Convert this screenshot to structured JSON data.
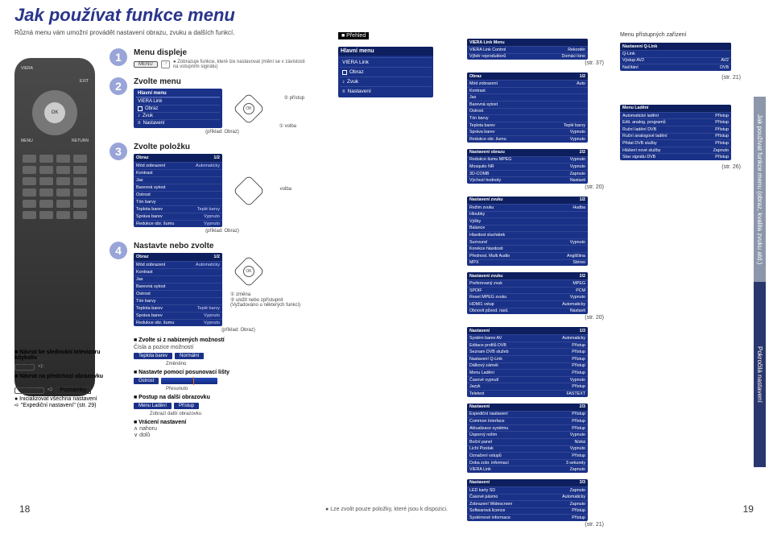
{
  "pageLeft": "18",
  "pageRight": "19",
  "title": "Jak používat funkce menu",
  "subtitle": "Různá menu vám umožní provádět nastavení obrazu, zvuku a dalších funkcí.",
  "footerNote": "● Lze zvolit pouze položky, které jsou k dispozici.",
  "sideTab": {
    "gray": "Jak používat funkce menu (obraz, kvalita zvuku atd.)",
    "navy": "Pokročilá nastavení"
  },
  "remote": {
    "ok": "OK",
    "menu": "MENU",
    "exit": "EXIT",
    "return": "RETURN"
  },
  "steps": {
    "s1": {
      "num": "1",
      "title": "Menu displeje",
      "chip": "MENU",
      "note": "● Zobrazuje funkce, které lze nastavovat (mění se v závislosti na vstupním signálu)"
    },
    "s2": {
      "num": "2",
      "title": "Zvolte menu",
      "menuHeader": "Hlavní menu",
      "rows": [
        "VIERA Link",
        "Obraz",
        "Zvuk",
        "Nastavení"
      ],
      "nav": {
        "right": "② přístup",
        "down": "① volba"
      },
      "belowCaption": "(příklad: Obraz)"
    },
    "s3": {
      "num": "3",
      "title": "Zvolte položku",
      "table": {
        "hdrLeft": "Obraz",
        "hdrRight": "1/2",
        "rows": [
          [
            "Mód zobrazení",
            "Automaticky"
          ],
          [
            "Kontrast",
            ""
          ],
          [
            "Jas",
            ""
          ],
          [
            "Barevná sytost",
            ""
          ],
          [
            "Ostrost",
            ""
          ],
          [
            "Tón barvy",
            ""
          ],
          [
            "Teplota barev",
            "Teplé barvy"
          ],
          [
            "Správa barev",
            "Vypnuto"
          ],
          [
            "Redukce obr. šumu",
            "Vypnuto"
          ]
        ]
      },
      "navRight": "volba",
      "belowCaption": "(příklad: Obraz)"
    },
    "s4": {
      "num": "4",
      "title": "Nastavte nebo zvolte",
      "table": {
        "hdrLeft": "Obraz",
        "hdrRight": "1/2",
        "rows": [
          [
            "Mód zobrazení",
            "Automaticky"
          ],
          [
            "Kontrast",
            ""
          ],
          [
            "Jas",
            ""
          ],
          [
            "Barevná sytost",
            ""
          ],
          [
            "Ostrost",
            ""
          ],
          [
            "Tón barvy",
            ""
          ],
          [
            "Teplota barev",
            "Teplé barvy"
          ],
          [
            "Správa barev",
            "Vypnuto"
          ],
          [
            "Redukce obr. šumu",
            "Vypnuto"
          ]
        ]
      },
      "navRight1": "① změna",
      "navRight2": "② uložit nebo zpřístupnit (Vyžadováno u některých funkcí)",
      "belowCaption": "(příklad: Obraz)",
      "section1": {
        "head": "■ Zvolte si z nabízených možností",
        "sub": "Čísla a pozice možností"
      },
      "slider1": {
        "label": "Teplota barev",
        "value": "Normální",
        "caption": "Změněno"
      },
      "section2": {
        "head": "■ Nastavte pomocí posunovací lišty",
        "slider": "Ostrost",
        "caption": "Přesunuto"
      },
      "section3": {
        "head": "■ Postup na další obrazovku",
        "btn1": "Menu Ladění",
        "btn2": "Přístup",
        "caption": "Zobrazí další obrazovku"
      },
      "section4": {
        "head": "■ Vrácení nastavení",
        "up": "nahoru",
        "down": "dolů"
      }
    }
  },
  "leftActions": {
    "a1": {
      "lbl": "■ Návrat ke sledování televizoru kdykoliv",
      "chip": "EXIT"
    },
    "a2": {
      "lbl": "■ Návrat na předchozí obrazovku",
      "chip": "RETURN"
    },
    "note": "Poznámky",
    "noteText": "● Inicializovat všechna nastavení",
    "noteLink": "➪ \"Expediční nastavení\" (str. 29)"
  },
  "overview": {
    "head": "■ Přehled",
    "mainHeader": "Hlavní menu",
    "rows": [
      "VIERA Link",
      "Obraz",
      "Zvuk",
      "Nastavení"
    ]
  },
  "rightStacks": [
    {
      "hdr": "VIERA Link Menu",
      "page": "",
      "rows": [
        [
          "VIERA Link Control",
          "Rekordér"
        ],
        [
          "Výběr reproduktorů",
          "Domácí kino"
        ]
      ],
      "str": "(str. 37)"
    },
    {
      "hdr": "Obraz",
      "page": "1/2",
      "rows": [
        [
          "Mód zobrazení",
          "Auto"
        ],
        [
          "Kontrast",
          ""
        ],
        [
          "Jas",
          ""
        ],
        [
          "Barevná sytost",
          ""
        ],
        [
          "Ostrost",
          ""
        ],
        [
          "Tón barvy",
          ""
        ],
        [
          "Teplota barev",
          "Teplé barvy"
        ],
        [
          "Správa barev",
          "Vypnuto"
        ],
        [
          "Redukce obr. šumu",
          "Vypnuto"
        ]
      ],
      "str": ""
    },
    {
      "hdr": "Nastavení obrazu",
      "page": "2/2",
      "rows": [
        [
          "Redukce šumu MPEG",
          "Vypnuto"
        ],
        [
          "Mosquito NR",
          "Vypnuto"
        ],
        [
          "3D-COMB",
          "Zapnuto"
        ],
        [
          "Výchozí hodnoty",
          "Nastavit"
        ]
      ],
      "str": "(str. 20)"
    },
    {
      "hdr": "Nastavení zvuku",
      "page": "1/2",
      "rows": [
        [
          "Režim zvuku",
          "Hudba"
        ],
        [
          "Hloubky",
          ""
        ],
        [
          "Výšky",
          ""
        ],
        [
          "Balance",
          ""
        ],
        [
          "Hlasitost sluchátek",
          ""
        ],
        [
          "Surround",
          "Vypnuto"
        ],
        [
          "Korekce hlasitosti",
          ""
        ],
        [
          "Přednost. Multi Audio",
          "Angličtina"
        ],
        [
          "MPX",
          "Stéreo"
        ]
      ],
      "str": ""
    },
    {
      "hdr": "Nastavení zvuku",
      "page": "2/2",
      "rows": [
        [
          "Preferovaný zvuk",
          "MPEG"
        ],
        [
          "SPDIF",
          "PCM"
        ],
        [
          "Reset MPEG zvuku",
          "Vypnuto"
        ],
        [
          "HDMI1 vstup",
          "Automaticky"
        ],
        [
          "Obnovit původ. nast.",
          "Nastavit"
        ]
      ],
      "str": "(str. 20)"
    },
    {
      "hdr": "Nastavení",
      "page": "1/3",
      "rows": [
        [
          "Systém barev AV",
          "Automaticky"
        ],
        [
          "Editace profilů DVB",
          "Přístup"
        ],
        [
          "Seznam DVB služeb",
          "Přístup"
        ],
        [
          "Nastavení Q-Link",
          "Přístup"
        ],
        [
          "Dálkový zámek",
          "Přístup"
        ],
        [
          "Menu Ladění",
          "Přístup"
        ],
        [
          "Časové vypnutí",
          "Vypnuto"
        ],
        [
          "Jazyk",
          "Přístup"
        ],
        [
          "Teletext",
          "FASTEXT"
        ]
      ],
      "str": ""
    },
    {
      "hdr": "Nastavení",
      "page": "2/3",
      "rows": [
        [
          "Expediční nastavení",
          "Přístup"
        ],
        [
          "Common Interface",
          "Přístup"
        ],
        [
          "Aktualizace systému",
          "Přístup"
        ],
        [
          "Úsporný režim",
          "Vypnuto"
        ],
        [
          "Boční panel",
          "Nízká"
        ],
        [
          "Lichí Pixstak",
          "Vypnuto"
        ],
        [
          "Označení vstupů",
          "Přístup"
        ],
        [
          "Doba zobr. informací",
          "3 sekundy"
        ],
        [
          "VIERA Link",
          "Zapnuto"
        ]
      ],
      "str": ""
    },
    {
      "hdr": "Nastavení",
      "page": "3/3",
      "rows": [
        [
          "LED karty SD",
          "Zapnuto"
        ],
        [
          "Časové pásmo",
          "Automaticky"
        ],
        [
          "Zobrazení Widescreen",
          "Zapnuto"
        ],
        [
          "Softwarová licence",
          "Přístup"
        ],
        [
          "Systémové informace",
          "Přístup"
        ]
      ],
      "str": "(str. 21)"
    }
  ],
  "farRight": {
    "label": "Menu přístupných zařízení",
    "t1": {
      "hdr": "Nastavení Q-Link",
      "rows": [
        [
          "Q-Link",
          ""
        ],
        [
          "Výstup AV2",
          "AV2"
        ],
        [
          "Načítání",
          "DVB"
        ]
      ],
      "str": "(str. 21)"
    },
    "t2": {
      "hdr": "Menu Ladění",
      "rows": [
        [
          "Automatické ladění",
          "Přístup"
        ],
        [
          "Edit. analog. programů",
          "Přístup"
        ],
        [
          "Ruční ladění DVB",
          "Přístup"
        ],
        [
          "Ruční analogové ladění",
          "Přístup"
        ],
        [
          "Přidat DVB služby",
          "Přístup"
        ],
        [
          "Hlášení nové služby",
          "Zapnuto"
        ],
        [
          "Stav signálu DVB",
          "Přístup"
        ]
      ],
      "str": "(str. 26)"
    }
  }
}
